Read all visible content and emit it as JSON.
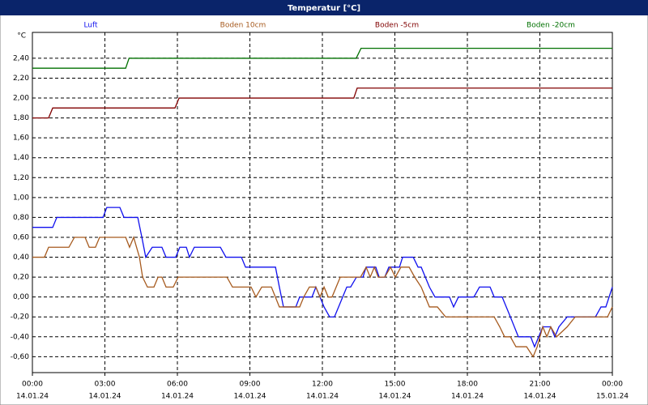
{
  "chart_data": {
    "type": "line",
    "title": "Temperatur [°C]",
    "y_label": "°C",
    "xlim": [
      0,
      24
    ],
    "ylim": [
      -0.76,
      2.66
    ],
    "xticks": [
      {
        "value": 0,
        "label": "00:00"
      },
      {
        "value": 3,
        "label": "03:00"
      },
      {
        "value": 6,
        "label": "06:00"
      },
      {
        "value": 9,
        "label": "09:00"
      },
      {
        "value": 12,
        "label": "12:00"
      },
      {
        "value": 15,
        "label": "15:00"
      },
      {
        "value": 18,
        "label": "18:00"
      },
      {
        "value": 21,
        "label": "21:00"
      },
      {
        "value": 24,
        "label": "00:00"
      }
    ],
    "xtick_dates": [
      "14.01.24",
      "14.01.24",
      "14.01.24",
      "14.01.24",
      "14.01.24",
      "14.01.24",
      "14.01.24",
      "14.01.24",
      "15.01.24"
    ],
    "yticks": [
      {
        "value": -0.6,
        "label": "-0,60"
      },
      {
        "value": -0.4,
        "label": "-0,40"
      },
      {
        "value": -0.2,
        "label": "-0,20"
      },
      {
        "value": 0,
        "label": "0,00"
      },
      {
        "value": 0.2,
        "label": "0,20"
      },
      {
        "value": 0.4,
        "label": "0,40"
      },
      {
        "value": 0.6,
        "label": "0,60"
      },
      {
        "value": 0.8,
        "label": "0,80"
      },
      {
        "value": 1.0,
        "label": "1,00"
      },
      {
        "value": 1.2,
        "label": "1,20"
      },
      {
        "value": 1.4,
        "label": "1,40"
      },
      {
        "value": 1.6,
        "label": "1,60"
      },
      {
        "value": 1.8,
        "label": "1,80"
      },
      {
        "value": 2.0,
        "label": "2,00"
      },
      {
        "value": 2.2,
        "label": "2,20"
      },
      {
        "value": 2.4,
        "label": "2,40"
      }
    ],
    "grid": true,
    "series": [
      {
        "name": "Luft",
        "color": "#1010ee",
        "x": [
          0,
          0.84,
          1.01,
          2.92,
          3.08,
          3.62,
          3.79,
          4.36,
          4.53,
          4.69,
          4.96,
          5.36,
          5.53,
          5.93,
          6.1,
          6.37,
          6.5,
          6.7,
          7.78,
          8.01,
          8.65,
          8.82,
          10.06,
          10.22,
          10.39,
          10.9,
          11.06,
          11.57,
          11.73,
          12.07,
          12.3,
          12.5,
          12.67,
          13.01,
          13.17,
          13.41,
          13.68,
          13.81,
          14.21,
          14.35,
          14.58,
          14.75,
          15.19,
          15.32,
          15.76,
          15.96,
          16.09,
          16.26,
          16.43,
          16.66,
          17.26,
          17.43,
          17.63,
          18.27,
          18.5,
          18.94,
          19.11,
          19.44,
          19.78,
          20.11,
          20.62,
          20.78,
          21.12,
          21.45,
          21.62,
          21.79,
          22.13,
          23.3,
          23.53,
          23.73,
          24
        ],
        "values": [
          0.7,
          0.7,
          0.8,
          0.8,
          0.9,
          0.9,
          0.8,
          0.8,
          0.6,
          0.4,
          0.5,
          0.5,
          0.4,
          0.4,
          0.5,
          0.5,
          0.4,
          0.5,
          0.5,
          0.4,
          0.4,
          0.3,
          0.3,
          0.1,
          -0.1,
          -0.1,
          0,
          0,
          0.1,
          -0.1,
          -0.2,
          -0.2,
          -0.1,
          0.1,
          0.1,
          0.2,
          0.2,
          0.3,
          0.3,
          0.2,
          0.2,
          0.3,
          0.3,
          0.4,
          0.4,
          0.3,
          0.3,
          0.2,
          0.1,
          0,
          0,
          -0.1,
          0,
          0,
          0.1,
          0.1,
          0,
          0,
          -0.2,
          -0.4,
          -0.4,
          -0.5,
          -0.3,
          -0.3,
          -0.4,
          -0.3,
          -0.2,
          -0.2,
          -0.1,
          -0.1,
          0.1
        ]
      },
      {
        "name": "Boden 10cm",
        "color": "#a65a1e",
        "x": [
          0,
          0.5,
          0.67,
          1.51,
          1.74,
          2.18,
          2.35,
          2.61,
          2.78,
          3.86,
          4.02,
          4.19,
          4.43,
          4.56,
          4.76,
          5.03,
          5.2,
          5.36,
          5.53,
          5.83,
          6.03,
          8.05,
          8.28,
          9.05,
          9.25,
          9.49,
          9.89,
          10.22,
          11.06,
          11.23,
          11.46,
          11.73,
          11.9,
          12.07,
          12.24,
          12.4,
          12.57,
          12.74,
          13.58,
          13.81,
          13.98,
          14.15,
          14.31,
          14.58,
          14.82,
          15.02,
          15.25,
          15.59,
          15.82,
          16.09,
          16.26,
          16.43,
          16.76,
          17.1,
          19.11,
          19.34,
          19.54,
          19.78,
          20.01,
          20.45,
          20.72,
          20.89,
          21.12,
          21.29,
          21.45,
          21.69,
          22.13,
          22.46,
          23.8,
          24
        ],
        "values": [
          0.4,
          0.4,
          0.5,
          0.5,
          0.6,
          0.6,
          0.5,
          0.5,
          0.6,
          0.6,
          0.5,
          0.6,
          0.4,
          0.2,
          0.1,
          0.1,
          0.2,
          0.2,
          0.1,
          0.1,
          0.2,
          0.2,
          0.1,
          0.1,
          0,
          0.1,
          0.1,
          -0.1,
          -0.1,
          0,
          0.1,
          0.1,
          0,
          0.1,
          0,
          0,
          0.1,
          0.2,
          0.2,
          0.3,
          0.2,
          0.3,
          0.2,
          0.2,
          0.3,
          0.2,
          0.3,
          0.3,
          0.2,
          0.1,
          0,
          -0.1,
          -0.1,
          -0.2,
          -0.2,
          -0.3,
          -0.4,
          -0.4,
          -0.5,
          -0.5,
          -0.6,
          -0.5,
          -0.3,
          -0.4,
          -0.3,
          -0.4,
          -0.3,
          -0.2,
          -0.2,
          -0.1
        ]
      },
      {
        "name": "Boden -5cm",
        "color": "#800000",
        "x": [
          0,
          0.67,
          0.84,
          5.9,
          6.07,
          13.3,
          13.44,
          24
        ],
        "values": [
          1.8,
          1.8,
          1.9,
          1.9,
          2.0,
          2.0,
          2.1,
          2.1
        ]
      },
      {
        "name": "Boden -20cm",
        "color": "#007000",
        "x": [
          0,
          3.86,
          4.0,
          13.4,
          13.6,
          24
        ],
        "values": [
          2.3,
          2.3,
          2.4,
          2.4,
          2.5,
          2.5
        ]
      }
    ]
  }
}
